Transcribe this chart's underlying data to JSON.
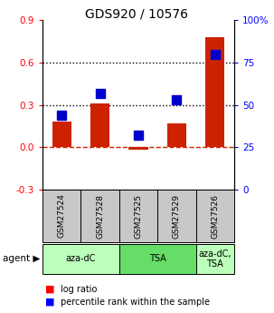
{
  "title": "GDS920 / 10576",
  "samples": [
    "GSM27524",
    "GSM27528",
    "GSM27525",
    "GSM27529",
    "GSM27526"
  ],
  "log_ratios": [
    0.18,
    0.31,
    -0.02,
    0.17,
    0.78
  ],
  "percentile_ranks": [
    44,
    57,
    32,
    53,
    80
  ],
  "ylim_left": [
    -0.3,
    0.9
  ],
  "ylim_right": [
    0,
    100
  ],
  "yticks_left": [
    -0.3,
    0.0,
    0.3,
    0.6,
    0.9
  ],
  "yticks_right": [
    0,
    25,
    50,
    75,
    100
  ],
  "ytick_labels_right": [
    "0",
    "25",
    "50",
    "75",
    "100%"
  ],
  "hlines": [
    0.3,
    0.6
  ],
  "bar_color": "#cc2200",
  "dot_color": "#0000cc",
  "zero_line_color": "#cc2200",
  "bg_color": "#ffffff",
  "sample_bg_color": "#c8c8c8",
  "agent_color_1": "#bbffbb",
  "agent_color_2": "#66dd66",
  "agent_color_3": "#bbffbb",
  "bar_width": 0.5,
  "dot_size": 55
}
